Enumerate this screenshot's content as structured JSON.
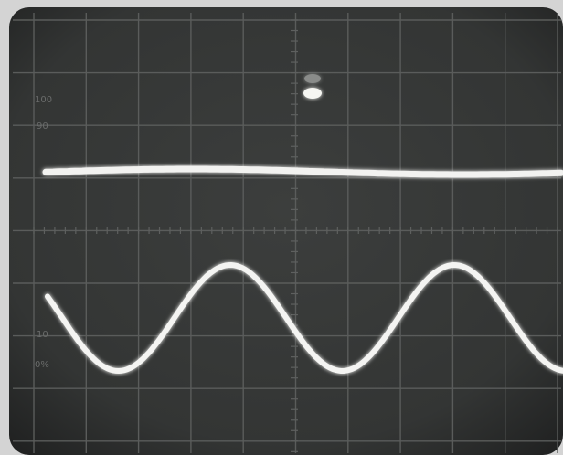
{
  "graticule_labels": [
    "100",
    "90",
    "10",
    "0%"
  ]
}
